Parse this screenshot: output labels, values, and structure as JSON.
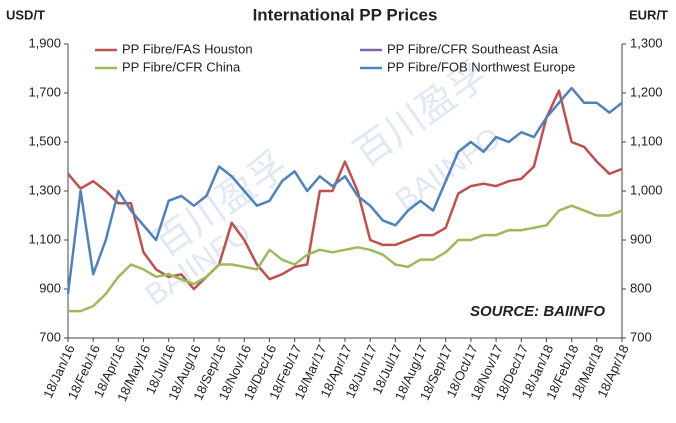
{
  "chart_data": {
    "type": "line",
    "title": "International PP Prices",
    "y_label": "USD/T",
    "y2_label": "EUR/T",
    "annotation": "SOURCE: BAIINFO",
    "watermark": [
      "百川盈孚",
      "BAIINFO"
    ],
    "categories": [
      "18/Jan/16",
      null,
      "18/Feb/16",
      null,
      "18/Apr/16",
      null,
      "18/May/16",
      null,
      "18/Jul/16",
      null,
      "18/Aug/16",
      null,
      "18/Sep/16",
      null,
      "18/Nov/16",
      null,
      "18/Dec/16",
      null,
      "18/Feb/17",
      null,
      "18/Mar/17",
      null,
      "18/Apr/17",
      null,
      "18/Jun/17",
      null,
      "18/Jul/17",
      null,
      "18/Aug/17",
      null,
      "18/Sep/17",
      null,
      "18/Oct/17",
      null,
      "18/Nov/17",
      null,
      "18/Dec/17",
      null,
      "18/Jan/18",
      null,
      "18/Feb/18",
      null,
      "18/Mar/18",
      null,
      "18/Apr/18"
    ],
    "series": [
      {
        "name": "PP Fibre/FAS Houston",
        "color": "#c0504d",
        "values": [
          1370,
          1310,
          1340,
          1300,
          1250,
          1250,
          1050,
          980,
          950,
          960,
          900,
          950,
          1000,
          1170,
          1100,
          1000,
          940,
          960,
          990,
          1000,
          1300,
          1300,
          1420,
          1300,
          1100,
          1080,
          1080,
          1100,
          1120,
          1120,
          1150,
          1290,
          1320,
          1330,
          1320,
          1340,
          1350,
          1400,
          1600,
          1710,
          1500,
          1480,
          1420,
          1370,
          1390
        ]
      },
      {
        "name": "PP Fibre/CFR Southeast Asia",
        "color": "#8064a2",
        "values": [
          null,
          null,
          null,
          null,
          null,
          null,
          null,
          null,
          null,
          null,
          null,
          null,
          null,
          null,
          null,
          null,
          null,
          null,
          null,
          null,
          null,
          null,
          null,
          null,
          null,
          null,
          null,
          null,
          null,
          null,
          null,
          null,
          null,
          null,
          null,
          null,
          null,
          null,
          null,
          null,
          null,
          null,
          null,
          null,
          null
        ]
      },
      {
        "name": "PP Fibre/CFR China",
        "color": "#9bbb59",
        "values": [
          810,
          810,
          830,
          880,
          950,
          1000,
          980,
          950,
          960,
          940,
          920,
          950,
          1000,
          1000,
          990,
          980,
          1060,
          1020,
          1000,
          1040,
          1060,
          1050,
          1060,
          1070,
          1060,
          1040,
          1000,
          990,
          1020,
          1020,
          1050,
          1100,
          1100,
          1120,
          1120,
          1140,
          1140,
          1150,
          1160,
          1220,
          1240,
          1220,
          1200,
          1200,
          1220
        ]
      },
      {
        "name": "PP Fibre/FOB Northwest Europe",
        "color": "#4f81bd",
        "axis": "y2",
        "values": [
          790,
          1000,
          830,
          900,
          1000,
          960,
          930,
          900,
          980,
          990,
          970,
          990,
          1050,
          1030,
          1000,
          970,
          980,
          1020,
          1040,
          1000,
          1030,
          1010,
          1030,
          990,
          970,
          940,
          930,
          960,
          980,
          960,
          1020,
          1080,
          1100,
          1080,
          1110,
          1100,
          1120,
          1110,
          1150,
          1180,
          1210,
          1180,
          1180,
          1160,
          1180
        ]
      }
    ],
    "ylim": [
      700,
      1900
    ],
    "yticks": [
      700,
      900,
      {
        "value": 1100,
        "label": "1,100"
      },
      {
        "value": 1300,
        "label": "1,300"
      },
      {
        "value": 1500,
        "label": "1,500"
      },
      {
        "value": 1700,
        "label": "1,700"
      },
      {
        "value": 1900,
        "label": "1,900"
      }
    ],
    "y2lim": [
      700,
      1300
    ],
    "y2ticks": [
      700,
      800,
      900,
      {
        "value": 1000,
        "label": "1,000"
      },
      {
        "value": 1100,
        "label": "1,100"
      },
      {
        "value": 1200,
        "label": "1,200"
      },
      {
        "value": 1300,
        "label": "1,300"
      }
    ],
    "grid": false
  }
}
